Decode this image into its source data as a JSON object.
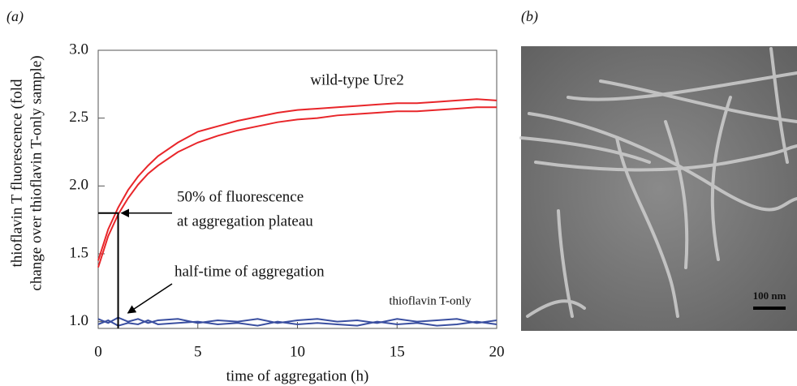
{
  "panel_labels": [
    "(a)",
    "(b)"
  ],
  "chart_data": {
    "type": "line",
    "ylabel": [
      "thioflavin T fluorescence (fold",
      "change over thioflavin T-only sample)"
    ],
    "xlabel": "time of aggregation (h)",
    "x": [
      0,
      0.5,
      1,
      1.5,
      2,
      2.5,
      3,
      4,
      5,
      6,
      7,
      8,
      9,
      10,
      11,
      12,
      13,
      14,
      15,
      16,
      17,
      18,
      19,
      20
    ],
    "series": [
      {
        "color": "#e8262a",
        "values": [
          1.45,
          1.68,
          1.84,
          1.97,
          2.07,
          2.15,
          2.22,
          2.32,
          2.4,
          2.44,
          2.48,
          2.51,
          2.54,
          2.56,
          2.57,
          2.58,
          2.59,
          2.6,
          2.61,
          2.61,
          2.62,
          2.63,
          2.64,
          2.63
        ]
      },
      {
        "color": "#e8262a",
        "values": [
          1.4,
          1.63,
          1.79,
          1.91,
          2.01,
          2.09,
          2.15,
          2.25,
          2.32,
          2.37,
          2.41,
          2.44,
          2.47,
          2.49,
          2.5,
          2.52,
          2.53,
          2.54,
          2.55,
          2.55,
          2.56,
          2.57,
          2.58,
          2.58
        ]
      },
      {
        "color": "#3a4fa0",
        "values": [
          1.02,
          0.99,
          1.03,
          1.0,
          1.02,
          0.99,
          1.01,
          1.02,
          0.99,
          1.01,
          1.0,
          1.02,
          0.99,
          1.01,
          1.02,
          1.0,
          1.01,
          0.99,
          1.02,
          1.0,
          1.01,
          1.02,
          0.99,
          1.01
        ]
      },
      {
        "color": "#3a4fa0",
        "values": [
          0.98,
          1.01,
          0.97,
          0.99,
          0.98,
          1.01,
          0.98,
          0.99,
          1.0,
          0.98,
          0.99,
          0.97,
          1.0,
          0.98,
          0.99,
          0.98,
          0.97,
          1.0,
          0.98,
          0.99,
          0.97,
          0.98,
          1.0,
          0.98
        ]
      }
    ],
    "xlim": [
      0,
      20
    ],
    "xticks": [
      0,
      5,
      10,
      15,
      20
    ],
    "ylim": [
      0.95,
      3.0
    ],
    "yticks": [
      {
        "value": 1,
        "label": "1.0"
      },
      {
        "value": 1.5,
        "label": "1.5"
      },
      {
        "value": 2,
        "label": "2.0"
      },
      {
        "value": 2.5,
        "label": "2.5"
      },
      {
        "value": 3,
        "label": "3.0"
      }
    ],
    "reference_point": {
      "x": 1,
      "y": 1.8
    },
    "annotations": [
      "wild-type Ure2",
      "50% of fluorescence",
      "at aggregation plateau",
      "half-time of aggregation",
      "thioflavin T-only"
    ]
  },
  "scale_bar": "100 nm"
}
